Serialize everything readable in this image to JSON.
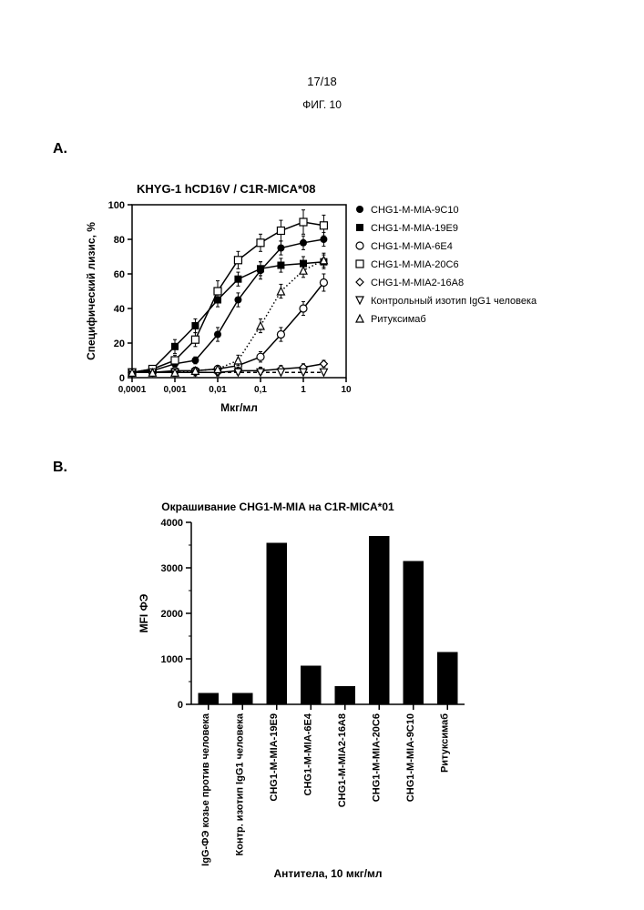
{
  "page_number": "17/18",
  "figure_label": "ФИГ. 10",
  "panelA_letter": "A.",
  "panelB_letter": "B.",
  "chartA": {
    "type": "line-scatter",
    "title": "KHYG-1 hCD16V   /   C1R-MICA*08",
    "xlabel": "Мкг/мл",
    "ylabel": "Специфический лизис, %",
    "xscale": "log",
    "xticks": [
      0.0001,
      0.001,
      0.01,
      0.1,
      1,
      10
    ],
    "xtick_labels": [
      "0,0001",
      "0,001",
      "0,01",
      "0,1",
      "1",
      "10"
    ],
    "ylim": [
      0,
      100
    ],
    "ytick_step": 20,
    "yticks": [
      0,
      20,
      40,
      60,
      80,
      100
    ],
    "background_color": "#ffffff",
    "axis_color": "#000000",
    "series": [
      {
        "name": "CHG1-M-MIA-9C10",
        "marker": "filled-circle",
        "linestyle": "solid",
        "color": "#000000",
        "x": [
          0.0001,
          0.0003,
          0.001,
          0.003,
          0.01,
          0.03,
          0.1,
          0.3,
          1,
          3
        ],
        "y": [
          3,
          4,
          8,
          10,
          25,
          45,
          62,
          75,
          78,
          80
        ],
        "err": [
          2,
          2,
          2,
          2,
          4,
          4,
          5,
          4,
          4,
          4
        ]
      },
      {
        "name": "CHG1-M-MIA-19E9",
        "marker": "filled-square",
        "linestyle": "solid",
        "color": "#000000",
        "x": [
          0.0001,
          0.0003,
          0.001,
          0.003,
          0.01,
          0.03,
          0.1,
          0.3,
          1,
          3
        ],
        "y": [
          3,
          5,
          18,
          30,
          45,
          57,
          63,
          65,
          66,
          67
        ],
        "err": [
          2,
          2,
          4,
          4,
          4,
          4,
          4,
          4,
          4,
          4
        ]
      },
      {
        "name": "CHG1-M-MIA-6E4",
        "marker": "open-circle",
        "linestyle": "solid",
        "color": "#000000",
        "x": [
          0.0001,
          0.0003,
          0.001,
          0.003,
          0.01,
          0.03,
          0.1,
          0.3,
          1,
          3
        ],
        "y": [
          3,
          3,
          4,
          4,
          5,
          7,
          12,
          25,
          40,
          55
        ],
        "err": [
          2,
          2,
          2,
          2,
          2,
          3,
          3,
          4,
          4,
          5
        ]
      },
      {
        "name": "CHG1-M-MIA-20C6",
        "marker": "open-square",
        "linestyle": "solid",
        "color": "#000000",
        "x": [
          0.0001,
          0.0003,
          0.001,
          0.003,
          0.01,
          0.03,
          0.1,
          0.3,
          1,
          3
        ],
        "y": [
          3,
          5,
          10,
          22,
          50,
          68,
          78,
          85,
          90,
          88
        ],
        "err": [
          2,
          2,
          3,
          4,
          6,
          5,
          5,
          6,
          7,
          6
        ]
      },
      {
        "name": "CHG1-M-MIA2-16A8",
        "marker": "open-diamond",
        "linestyle": "solid",
        "color": "#000000",
        "x": [
          0.0001,
          0.0003,
          0.001,
          0.003,
          0.01,
          0.03,
          0.1,
          0.3,
          1,
          3
        ],
        "y": [
          3,
          3,
          3,
          3,
          3,
          4,
          4,
          5,
          6,
          8
        ],
        "err": [
          2,
          2,
          2,
          2,
          2,
          2,
          2,
          2,
          2,
          2
        ]
      },
      {
        "name": "Контрольный изотип IgG1 человека",
        "marker": "open-down-triangle",
        "linestyle": "dashed",
        "color": "#000000",
        "x": [
          0.0001,
          0.0003,
          0.001,
          0.003,
          0.01,
          0.03,
          0.1,
          0.3,
          1,
          3
        ],
        "y": [
          3,
          3,
          3,
          3,
          3,
          3,
          3,
          3,
          3,
          3
        ],
        "err": [
          0,
          0,
          0,
          0,
          0,
          0,
          0,
          0,
          0,
          0
        ]
      },
      {
        "name": "Ритуксимаб",
        "marker": "open-up-triangle",
        "linestyle": "dotted",
        "color": "#000000",
        "x": [
          0.0001,
          0.0003,
          0.001,
          0.003,
          0.01,
          0.03,
          0.1,
          0.3,
          1,
          3
        ],
        "y": [
          3,
          3,
          3,
          4,
          5,
          10,
          30,
          50,
          62,
          68
        ],
        "err": [
          2,
          2,
          2,
          2,
          2,
          3,
          4,
          4,
          4,
          4
        ]
      }
    ]
  },
  "chartB": {
    "type": "bar",
    "title": "Окрашивание CHG1-M-MIA на C1R-MICA*01",
    "ylabel": "MFI ФЭ",
    "xlabel": "Антитела, 10 мкг/мл",
    "ylim": [
      0,
      4000
    ],
    "yticks": [
      0,
      1000,
      2000,
      3000,
      4000
    ],
    "bar_color": "#000000",
    "background_color": "#ffffff",
    "axis_color": "#000000",
    "categories": [
      "IgG-ФЭ козье против человека",
      "Контр. изотип IgG1 человека",
      "CHG1-M-MIA-19E9",
      "CHG1-M-MIA-6E4",
      "CHG1-M-MIA2-16A8",
      "CHG1-M-MIA-20C6",
      "CHG1-M-MIA-9C10",
      "Ритуксимаб"
    ],
    "values": [
      250,
      250,
      3550,
      850,
      400,
      3700,
      3150,
      1150
    ],
    "bar_width": 0.6
  }
}
